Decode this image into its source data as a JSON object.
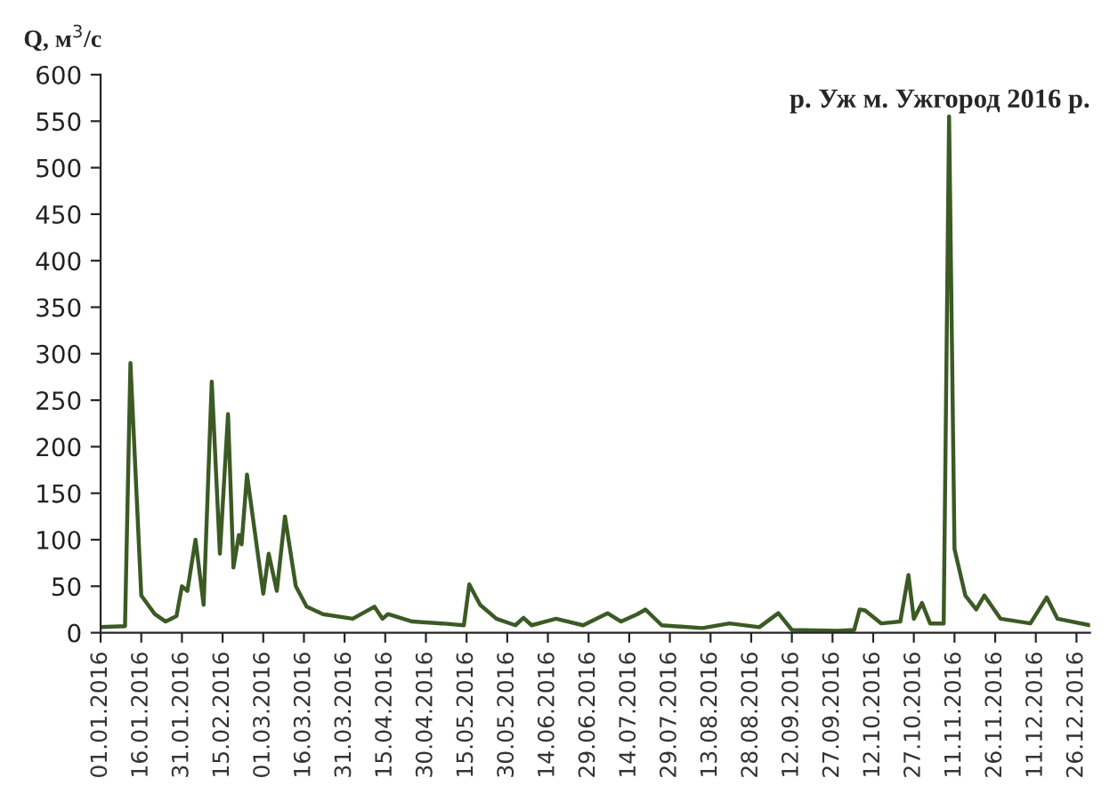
{
  "chart_data": {
    "type": "line",
    "title": "р. Уж м. Ужгород 2016 р.",
    "ylabel": "Q, м$^{3}$/с",
    "x": [
      "2016-01-01",
      "2016-01-10",
      "2016-01-12",
      "2016-01-16",
      "2016-01-21",
      "2016-01-25",
      "2016-01-27",
      "2016-01-29",
      "2016-01-31",
      "2016-02-02",
      "2016-02-05",
      "2016-02-08",
      "2016-02-11",
      "2016-02-14",
      "2016-02-17",
      "2016-02-19",
      "2016-02-21",
      "2016-02-22",
      "2016-02-24",
      "2016-03-01",
      "2016-03-03",
      "2016-03-06",
      "2016-03-09",
      "2016-03-13",
      "2016-03-17",
      "2016-03-23",
      "2016-04-03",
      "2016-04-11",
      "2016-04-14",
      "2016-04-16",
      "2016-04-25",
      "2016-05-06",
      "2016-05-14",
      "2016-05-16",
      "2016-05-20",
      "2016-05-26",
      "2016-06-02",
      "2016-06-05",
      "2016-06-08",
      "2016-06-13",
      "2016-06-17",
      "2016-06-27",
      "2016-07-06",
      "2016-07-11",
      "2016-07-17",
      "2016-07-20",
      "2016-07-26",
      "2016-08-10",
      "2016-08-20",
      "2016-08-31",
      "2016-09-07",
      "2016-09-12",
      "2016-09-29",
      "2016-10-05",
      "2016-10-07",
      "2016-10-09",
      "2016-10-15",
      "2016-10-22",
      "2016-10-25",
      "2016-10-27",
      "2016-10-30",
      "2016-11-02",
      "2016-11-07",
      "2016-11-09",
      "2016-11-11",
      "2016-11-15",
      "2016-11-19",
      "2016-11-22",
      "2016-11-28",
      "2016-12-09",
      "2016-12-15",
      "2016-12-19",
      "2016-12-31"
    ],
    "series": [
      {
        "color": "#3b5a24",
        "values": [
          6,
          7,
          290,
          40,
          20,
          12,
          15,
          18,
          50,
          45,
          100,
          30,
          270,
          85,
          235,
          70,
          105,
          95,
          170,
          42,
          85,
          45,
          125,
          50,
          28,
          20,
          15,
          28,
          15,
          20,
          12,
          10,
          8,
          52,
          30,
          15,
          8,
          16,
          8,
          12,
          15,
          8,
          21,
          12,
          20,
          25,
          8,
          5,
          10,
          6,
          21,
          3,
          2,
          3,
          25,
          24,
          10,
          12,
          62,
          15,
          32,
          10,
          10,
          555,
          90,
          40,
          25,
          40,
          15,
          10,
          38,
          15,
          8
        ]
      }
    ],
    "xlim": [
      "2016-01-01",
      "2016-12-31"
    ],
    "xticks": [
      {
        "value": "2016-01-01",
        "label": "01.01.2016"
      },
      {
        "value": "2016-01-16",
        "label": "16.01.2016"
      },
      {
        "value": "2016-01-31",
        "label": "31.01.2016"
      },
      {
        "value": "2016-02-15",
        "label": "15.02.2016"
      },
      {
        "value": "2016-03-01",
        "label": "01.03.2016"
      },
      {
        "value": "2016-03-16",
        "label": "16.03.2016"
      },
      {
        "value": "2016-03-31",
        "label": "31.03.2016"
      },
      {
        "value": "2016-04-15",
        "label": "15.04.2016"
      },
      {
        "value": "2016-04-30",
        "label": "30.04.2016"
      },
      {
        "value": "2016-05-15",
        "label": "15.05.2016"
      },
      {
        "value": "2016-05-30",
        "label": "30.05.2016"
      },
      {
        "value": "2016-06-14",
        "label": "14.06.2016"
      },
      {
        "value": "2016-06-29",
        "label": "29.06.2016"
      },
      {
        "value": "2016-07-14",
        "label": "14.07.2016"
      },
      {
        "value": "2016-07-29",
        "label": "29.07.2016"
      },
      {
        "value": "2016-08-13",
        "label": "13.08.2016"
      },
      {
        "value": "2016-08-28",
        "label": "28.08.2016"
      },
      {
        "value": "2016-09-12",
        "label": "12.09.2016"
      },
      {
        "value": "2016-09-27",
        "label": "27.09.2016"
      },
      {
        "value": "2016-10-12",
        "label": "12.10.2016"
      },
      {
        "value": "2016-10-27",
        "label": "27.10.2016"
      },
      {
        "value": "2016-11-11",
        "label": "11.11.2016"
      },
      {
        "value": "2016-11-26",
        "label": "26.11.2016"
      },
      {
        "value": "2016-12-11",
        "label": "11.12.2016"
      },
      {
        "value": "2016-12-26",
        "label": "26.12.2016"
      }
    ],
    "ylim": [
      0,
      600
    ],
    "yticks": [
      0,
      50,
      100,
      150,
      200,
      250,
      300,
      350,
      400,
      450,
      500,
      550,
      600
    ],
    "grid": false,
    "legend": false,
    "marker": "none",
    "line_style": "solid"
  }
}
